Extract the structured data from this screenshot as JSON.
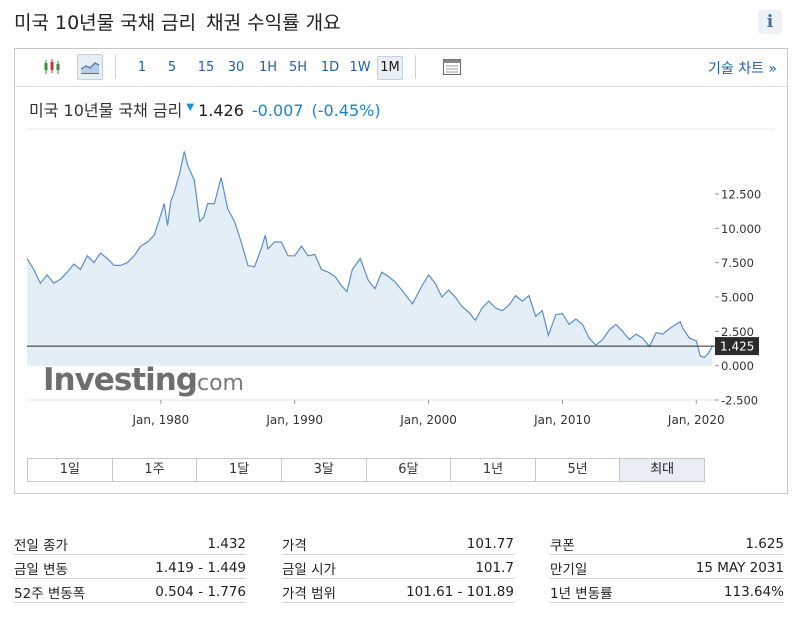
{
  "header": {
    "title": "미국 10년물 국채 금리",
    "subtitle": "채권 수익률 개요",
    "info_icon": "info-icon"
  },
  "toolbar": {
    "icons": [
      "candlestick-icon",
      "area-chart-icon",
      "table-icon"
    ],
    "intervals": [
      "1",
      "5",
      "15",
      "30",
      "1H",
      "5H",
      "1D",
      "1W",
      "1M"
    ],
    "active_interval": "1M",
    "tech_chart_link": "기술 차트 »"
  },
  "quote": {
    "name": "미국 10년물 국채 금리",
    "last": "1.426",
    "change": "-0.007",
    "change_pct": "(-0.45%)",
    "down_color": "#1a83cc"
  },
  "colors": {
    "line": "#5b8ec9",
    "fill": "#e3eef6",
    "price_tag": "#2b2b2b"
  },
  "chart_data": {
    "type": "area",
    "x_ticks": [
      "Jan, 1980",
      "Jan, 1990",
      "Jan, 2000",
      "Jan, 2010",
      "Jan, 2020"
    ],
    "y_ticks": [
      "12.500",
      "10.000",
      "7.500",
      "5.000",
      "2.500",
      "0.000",
      "-2.500"
    ],
    "ylim": [
      -2.5,
      16.5
    ],
    "xlim": [
      1970.0,
      2021.4
    ],
    "current_value": "1.425",
    "grid": false,
    "watermark": "Investing",
    "watermark_suffix": ".com",
    "series": [
      {
        "x": [
          1970.0,
          1970.5,
          1971.0,
          1971.5,
          1972.0,
          1972.5,
          1973.0,
          1973.5,
          1974.0,
          1974.5,
          1975.0,
          1975.5,
          1976.0,
          1976.5,
          1977.0,
          1977.5,
          1978.0,
          1978.5,
          1979.0,
          1979.5,
          1980.0,
          1980.25,
          1980.5,
          1980.75,
          1981.0,
          1981.4,
          1981.75,
          1982.0,
          1982.5,
          1982.9,
          1983.2,
          1983.5,
          1984.0,
          1984.5,
          1985.0,
          1985.5,
          1986.0,
          1986.5,
          1987.0,
          1987.5,
          1987.8,
          1988.0,
          1988.5,
          1989.0,
          1989.5,
          1990.0,
          1990.5,
          1991.0,
          1991.5,
          1992.0,
          1992.5,
          1993.0,
          1993.5,
          1993.9,
          1994.3,
          1994.9,
          1995.5,
          1996.0,
          1996.5,
          1997.0,
          1997.5,
          1998.0,
          1998.8,
          1999.5,
          2000.0,
          2000.5,
          2001.0,
          2001.5,
          2002.0,
          2002.5,
          2003.0,
          2003.5,
          2004.0,
          2004.5,
          2005.0,
          2005.5,
          2006.0,
          2006.5,
          2007.0,
          2007.5,
          2008.0,
          2008.5,
          2008.95,
          2009.5,
          2010.0,
          2010.5,
          2011.0,
          2011.5,
          2012.0,
          2012.5,
          2013.0,
          2013.5,
          2014.0,
          2014.5,
          2015.0,
          2015.5,
          2016.0,
          2016.5,
          2017.0,
          2017.5,
          2018.0,
          2018.8,
          2019.0,
          2019.5,
          2020.0,
          2020.3,
          2020.6,
          2020.9,
          2021.2
        ],
        "y": [
          7.8,
          7.0,
          6.0,
          6.6,
          6.0,
          6.3,
          6.8,
          7.4,
          7.0,
          8.0,
          7.5,
          8.2,
          7.8,
          7.3,
          7.3,
          7.5,
          8.0,
          8.7,
          9.0,
          9.5,
          11.0,
          11.8,
          10.2,
          12.0,
          12.6,
          14.0,
          15.6,
          14.6,
          13.5,
          10.5,
          10.8,
          11.8,
          11.8,
          13.7,
          11.4,
          10.5,
          9.0,
          7.3,
          7.2,
          8.5,
          9.5,
          8.5,
          9.0,
          9.0,
          8.0,
          8.0,
          8.7,
          8.0,
          8.1,
          7.0,
          6.8,
          6.5,
          5.8,
          5.4,
          7.0,
          7.8,
          6.2,
          5.6,
          6.8,
          6.5,
          6.1,
          5.5,
          4.5,
          5.8,
          6.6,
          6.0,
          5.0,
          5.5,
          5.0,
          4.3,
          3.9,
          3.3,
          4.2,
          4.7,
          4.2,
          4.0,
          4.4,
          5.1,
          4.7,
          5.1,
          3.6,
          4.0,
          2.2,
          3.7,
          3.8,
          3.0,
          3.4,
          3.0,
          2.0,
          1.5,
          1.9,
          2.6,
          3.0,
          2.5,
          1.9,
          2.3,
          2.0,
          1.4,
          2.4,
          2.3,
          2.7,
          3.2,
          2.7,
          2.0,
          1.8,
          0.7,
          0.6,
          0.9,
          1.4
        ]
      }
    ]
  },
  "ranges": {
    "items": [
      "1일",
      "1주",
      "1달",
      "3달",
      "6달",
      "1년",
      "5년",
      "최대"
    ],
    "active": "최대"
  },
  "stats": {
    "col1": [
      {
        "label": "전일 종가",
        "value": "1.432"
      },
      {
        "label": "금일 변동",
        "value": "1.419 - 1.449"
      },
      {
        "label": "52주 변동폭",
        "value": "0.504 - 1.776"
      }
    ],
    "col2": [
      {
        "label": "가격",
        "value": "101.77"
      },
      {
        "label": "금일 시가",
        "value": "101.7"
      },
      {
        "label": "가격 범위",
        "value": "101.61 - 101.89"
      }
    ],
    "col3": [
      {
        "label": "쿠폰",
        "value": "1.625"
      },
      {
        "label": "만기일",
        "value": "15 MAY 2031"
      },
      {
        "label": "1년 변동률",
        "value": "113.64%"
      }
    ]
  }
}
